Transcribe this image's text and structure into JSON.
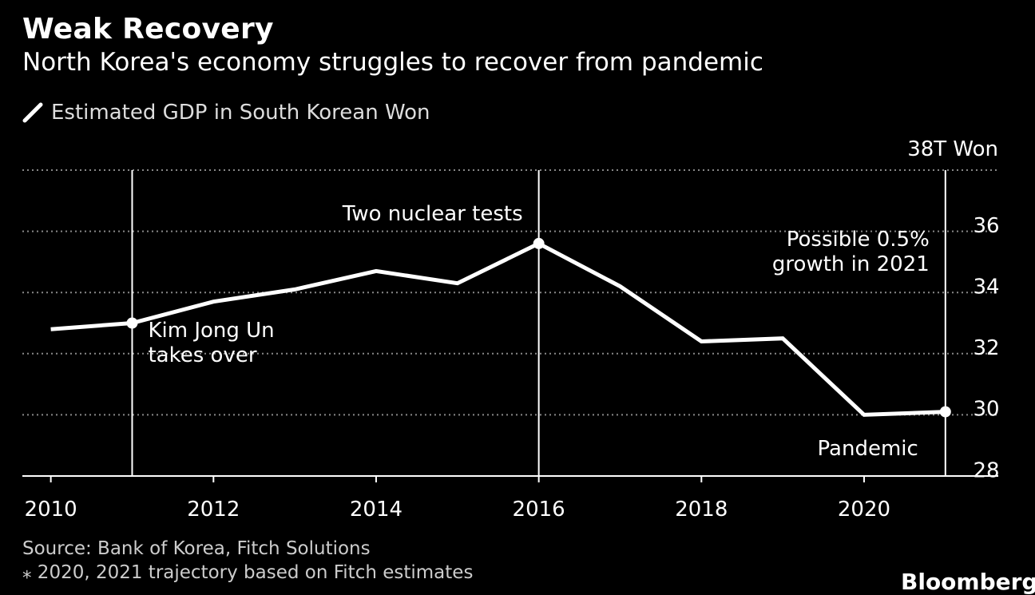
{
  "header": {
    "title": "Weak Recovery",
    "subtitle": "North Korea's economy struggles to recover from pandemic"
  },
  "footer": {
    "source": "Source: Bank of Korea, Fitch Solutions",
    "note": "⁎ 2020, 2021 trajectory based on Fitch estimates",
    "brand": "Bloomberg"
  },
  "colors": {
    "background": "#000000",
    "line": "#ffffff",
    "grid": "#888888"
  },
  "chart_data": {
    "type": "line",
    "title": "Weak Recovery",
    "subtitle": "North Korea's economy struggles to recover from pandemic",
    "series": [
      {
        "name": "Estimated GDP in South Korean Won",
        "x": [
          2010,
          2011,
          2012,
          2013,
          2014,
          2015,
          2016,
          2017,
          2018,
          2019,
          2020,
          2021
        ],
        "values": [
          32.6,
          32.8,
          33.5,
          33.9,
          34.5,
          34.1,
          35.4,
          34.0,
          32.2,
          32.3,
          29.8,
          29.9
        ]
      }
    ],
    "xlim": [
      2009.65,
      2021.65
    ],
    "ylim": [
      27.8,
      37.8
    ],
    "xticks": [
      2010,
      2012,
      2014,
      2016,
      2018,
      2020
    ],
    "xtick_labels": [
      "2010",
      "2012",
      "2014",
      "2016",
      "2018",
      "2020"
    ],
    "yticks": [
      28,
      30,
      32,
      34,
      36
    ],
    "ytick_labels": [
      "28",
      "30",
      "32",
      "34",
      "36"
    ],
    "ytop_label": "38T Won",
    "ytop_value": 37.8,
    "gridlines": [
      29.8,
      31.8,
      33.8,
      35.8,
      37.8
    ],
    "ylabel_position": "right",
    "markers": [
      {
        "x": 2011,
        "y": 32.8
      },
      {
        "x": 2016,
        "y": 35.4
      },
      {
        "x": 2021,
        "y": 29.9
      }
    ],
    "event_lines": [
      2011,
      2016,
      2021
    ],
    "annotations": [
      {
        "lines": [
          "Kim Jong Un",
          "takes over"
        ],
        "x": 2011
      },
      {
        "lines": [
          "Two nuclear tests"
        ],
        "x": 2016
      },
      {
        "lines": [
          "Possible 0.5%",
          "growth in 2021"
        ],
        "x": 2021
      },
      {
        "lines": [
          "Pandemic"
        ],
        "x": 2021
      }
    ]
  }
}
